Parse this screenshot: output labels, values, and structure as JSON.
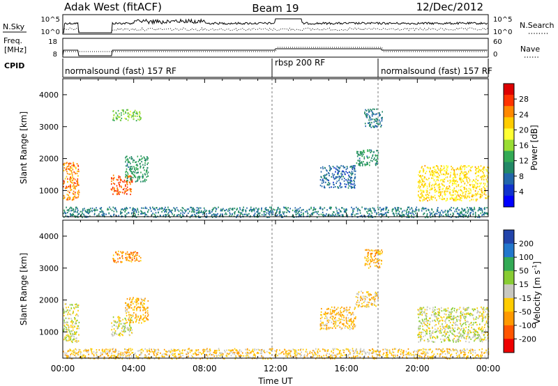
{
  "header": {
    "title": "Adak West (fitACF)",
    "beam": "Beam 19",
    "date": "12/Dec/2012"
  },
  "nsky_panel": {
    "left_label": "N.Sky",
    "right_label": "N.Search",
    "left_ticks": [
      "10^5",
      "10^0"
    ],
    "right_ticks": [
      "10^5",
      "10^0"
    ]
  },
  "freq_panel": {
    "left_label_line1": "Freq.",
    "left_label_line2": "[MHz]",
    "right_label": "Nave",
    "left_ticks": [
      "18",
      "8"
    ],
    "right_ticks": [
      "60",
      "0"
    ]
  },
  "cpid": {
    "label": "CPID",
    "segments": [
      {
        "text": "normalsound (fast) 157 RF",
        "start": 0,
        "end": 12
      },
      {
        "text": "rbsp 200 RF",
        "start": 12,
        "end": 18
      },
      {
        "text": "normalsound (fast) 157 RF",
        "start": 18,
        "end": 24
      }
    ]
  },
  "power_colorbar": {
    "label": "Power [dB]",
    "ticks": [
      "28",
      "24",
      "20",
      "16",
      "12",
      "8",
      "4"
    ],
    "colors": [
      "#dd0000",
      "#ff3300",
      "#ff8800",
      "#ffcc00",
      "#ffff33",
      "#99dd33",
      "#33aa55",
      "#228866",
      "#2266aa",
      "#1133cc",
      "#0000ff"
    ]
  },
  "velocity_colorbar": {
    "label_main": "Velocity [m s",
    "label_sup": "-1",
    "label_end": "]",
    "ticks": [
      "200",
      "100",
      "50",
      "15",
      "-15",
      "-50",
      "-100",
      "-200"
    ],
    "colors": [
      "#2244aa",
      "#2277cc",
      "#33aa55",
      "#88cc33",
      "#c8c8c0",
      "#ffcc00",
      "#ff9900",
      "#ff5500",
      "#ee0000"
    ]
  },
  "x_axis": {
    "label": "Time UT",
    "ticks": [
      "00:00",
      "04:00",
      "08:00",
      "12:00",
      "16:00",
      "20:00",
      "00:00"
    ]
  },
  "chart_data": [
    {
      "type": "heatmap",
      "panel": "power",
      "xlabel": "Time UT",
      "ylabel": "Slant Range [km]",
      "xlim": [
        0,
        24
      ],
      "ylim": [
        180,
        4500
      ],
      "yticks": [
        1000,
        2000,
        3000,
        4000
      ],
      "colorbar_label": "Power [dB]",
      "clim": [
        0,
        30
      ],
      "regions": [
        {
          "t0": 0.0,
          "t1": 0.9,
          "r0": 700,
          "r1": 1900,
          "value": 24
        },
        {
          "t0": 2.7,
          "t1": 3.9,
          "r0": 900,
          "r1": 1500,
          "value": 26
        },
        {
          "t0": 2.8,
          "t1": 4.4,
          "r0": 3200,
          "r1": 3550,
          "value": 14
        },
        {
          "t0": 3.5,
          "t1": 4.8,
          "r0": 1300,
          "r1": 2100,
          "value": 10
        },
        {
          "t0": 14.5,
          "t1": 16.5,
          "r0": 1100,
          "r1": 1800,
          "value": 6
        },
        {
          "t0": 16.5,
          "t1": 17.8,
          "r0": 1800,
          "r1": 2300,
          "value": 10
        },
        {
          "t0": 17.0,
          "t1": 18.0,
          "r0": 3000,
          "r1": 3600,
          "value": 8
        },
        {
          "t0": 20.0,
          "t1": 24.0,
          "r0": 700,
          "r1": 1800,
          "value": 20
        },
        {
          "t0": 0.0,
          "t1": 24.0,
          "r0": 180,
          "r1": 500,
          "value": 8
        }
      ]
    },
    {
      "type": "heatmap",
      "panel": "velocity",
      "xlabel": "Time UT",
      "ylabel": "Slant Range [km]",
      "xlim": [
        0,
        24
      ],
      "ylim": [
        180,
        4500
      ],
      "yticks": [
        1000,
        2000,
        3000,
        4000
      ],
      "colorbar_label": "Velocity [m s-1]",
      "clim": [
        -250,
        250
      ],
      "regions": [
        {
          "t0": 0.0,
          "t1": 0.9,
          "r0": 700,
          "r1": 1900,
          "value": 0
        },
        {
          "t0": 2.7,
          "t1": 3.9,
          "r0": 900,
          "r1": 1500,
          "value": 0
        },
        {
          "t0": 2.8,
          "t1": 4.4,
          "r0": 3200,
          "r1": 3550,
          "value": -80
        },
        {
          "t0": 3.5,
          "t1": 4.8,
          "r0": 1300,
          "r1": 2100,
          "value": -40
        },
        {
          "t0": 14.5,
          "t1": 16.5,
          "r0": 1100,
          "r1": 1800,
          "value": -40
        },
        {
          "t0": 16.5,
          "t1": 17.8,
          "r0": 1800,
          "r1": 2300,
          "value": -30
        },
        {
          "t0": 17.0,
          "t1": 18.0,
          "r0": 3000,
          "r1": 3600,
          "value": -60
        },
        {
          "t0": 20.0,
          "t1": 24.0,
          "r0": 700,
          "r1": 1800,
          "value": 0
        },
        {
          "t0": 0.0,
          "t1": 24.0,
          "r0": 180,
          "r1": 500,
          "value": -30
        }
      ]
    }
  ]
}
